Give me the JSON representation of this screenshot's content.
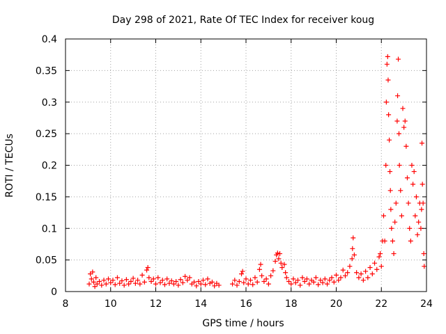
{
  "chart_data": {
    "type": "scatter",
    "title": "Day 298 of 2021, Rate Of TEC Index for receiver koug",
    "xlabel": "GPS time / hours",
    "ylabel": "ROTI / TECUs",
    "xlim": [
      8,
      24
    ],
    "ylim": [
      0,
      0.4
    ],
    "xticks": [
      8,
      10,
      12,
      14,
      16,
      18,
      20,
      22,
      24
    ],
    "xtick_labels": [
      "8",
      "10",
      "12",
      "14",
      "16",
      "18",
      "20",
      "22",
      "24"
    ],
    "yticks": [
      0,
      0.05,
      0.1,
      0.15,
      0.2,
      0.25,
      0.3,
      0.35,
      0.4
    ],
    "ytick_labels": [
      "0",
      "0.05",
      "0.1",
      "0.15",
      "0.2",
      "0.25",
      "0.3",
      "0.35",
      "0.4"
    ],
    "grid": true,
    "marker": "plus",
    "series_color": "#ff0000",
    "series": [
      {
        "points": [
          [
            9.05,
            0.012
          ],
          [
            9.1,
            0.028
          ],
          [
            9.15,
            0.02
          ],
          [
            9.2,
            0.031
          ],
          [
            9.25,
            0.015
          ],
          [
            9.3,
            0.008
          ],
          [
            9.35,
            0.022
          ],
          [
            9.4,
            0.012
          ],
          [
            9.5,
            0.016
          ],
          [
            9.6,
            0.01
          ],
          [
            9.7,
            0.018
          ],
          [
            9.8,
            0.012
          ],
          [
            9.9,
            0.02
          ],
          [
            10.0,
            0.014
          ],
          [
            10.1,
            0.018
          ],
          [
            10.2,
            0.011
          ],
          [
            10.3,
            0.022
          ],
          [
            10.4,
            0.013
          ],
          [
            10.5,
            0.017
          ],
          [
            10.6,
            0.01
          ],
          [
            10.7,
            0.019
          ],
          [
            10.8,
            0.012
          ],
          [
            10.9,
            0.016
          ],
          [
            11.0,
            0.021
          ],
          [
            11.1,
            0.013
          ],
          [
            11.2,
            0.018
          ],
          [
            11.3,
            0.012
          ],
          [
            11.4,
            0.026
          ],
          [
            11.5,
            0.015
          ],
          [
            11.6,
            0.034
          ],
          [
            11.65,
            0.038
          ],
          [
            11.7,
            0.022
          ],
          [
            11.8,
            0.016
          ],
          [
            11.9,
            0.02
          ],
          [
            12.0,
            0.012
          ],
          [
            12.1,
            0.022
          ],
          [
            12.2,
            0.014
          ],
          [
            12.3,
            0.018
          ],
          [
            12.4,
            0.011
          ],
          [
            12.5,
            0.02
          ],
          [
            12.6,
            0.013
          ],
          [
            12.7,
            0.017
          ],
          [
            12.8,
            0.012
          ],
          [
            12.9,
            0.016
          ],
          [
            13.0,
            0.01
          ],
          [
            13.1,
            0.019
          ],
          [
            13.2,
            0.014
          ],
          [
            13.3,
            0.024
          ],
          [
            13.4,
            0.018
          ],
          [
            13.5,
            0.022
          ],
          [
            13.6,
            0.012
          ],
          [
            13.7,
            0.015
          ],
          [
            13.8,
            0.009
          ],
          [
            13.9,
            0.016
          ],
          [
            14.0,
            0.012
          ],
          [
            14.1,
            0.018
          ],
          [
            14.2,
            0.011
          ],
          [
            14.3,
            0.02
          ],
          [
            14.4,
            0.013
          ],
          [
            14.5,
            0.015
          ],
          [
            14.6,
            0.009
          ],
          [
            14.7,
            0.013
          ],
          [
            14.8,
            0.01
          ],
          [
            15.4,
            0.012
          ],
          [
            15.5,
            0.018
          ],
          [
            15.6,
            0.01
          ],
          [
            15.7,
            0.016
          ],
          [
            15.8,
            0.028
          ],
          [
            15.85,
            0.032
          ],
          [
            15.9,
            0.014
          ],
          [
            16.0,
            0.02
          ],
          [
            16.1,
            0.012
          ],
          [
            16.2,
            0.018
          ],
          [
            16.3,
            0.011
          ],
          [
            16.4,
            0.022
          ],
          [
            16.5,
            0.015
          ],
          [
            16.6,
            0.035
          ],
          [
            16.65,
            0.043
          ],
          [
            16.7,
            0.025
          ],
          [
            16.8,
            0.016
          ],
          [
            16.9,
            0.02
          ],
          [
            17.0,
            0.012
          ],
          [
            17.1,
            0.025
          ],
          [
            17.2,
            0.033
          ],
          [
            17.3,
            0.048
          ],
          [
            17.35,
            0.058
          ],
          [
            17.4,
            0.061
          ],
          [
            17.45,
            0.052
          ],
          [
            17.5,
            0.06
          ],
          [
            17.55,
            0.045
          ],
          [
            17.6,
            0.038
          ],
          [
            17.7,
            0.043
          ],
          [
            17.75,
            0.03
          ],
          [
            17.8,
            0.022
          ],
          [
            17.9,
            0.016
          ],
          [
            18.0,
            0.012
          ],
          [
            18.1,
            0.02
          ],
          [
            18.2,
            0.014
          ],
          [
            18.3,
            0.018
          ],
          [
            18.4,
            0.01
          ],
          [
            18.5,
            0.022
          ],
          [
            18.6,
            0.016
          ],
          [
            18.7,
            0.02
          ],
          [
            18.8,
            0.012
          ],
          [
            18.9,
            0.018
          ],
          [
            19.0,
            0.015
          ],
          [
            19.1,
            0.022
          ],
          [
            19.2,
            0.011
          ],
          [
            19.3,
            0.018
          ],
          [
            19.4,
            0.014
          ],
          [
            19.5,
            0.02
          ],
          [
            19.6,
            0.012
          ],
          [
            19.7,
            0.018
          ],
          [
            19.8,
            0.022
          ],
          [
            19.9,
            0.015
          ],
          [
            20.0,
            0.026
          ],
          [
            20.1,
            0.018
          ],
          [
            20.2,
            0.022
          ],
          [
            20.3,
            0.034
          ],
          [
            20.4,
            0.025
          ],
          [
            20.5,
            0.03
          ],
          [
            20.6,
            0.04
          ],
          [
            20.7,
            0.052
          ],
          [
            20.72,
            0.068
          ],
          [
            20.75,
            0.085
          ],
          [
            20.8,
            0.058
          ],
          [
            20.9,
            0.03
          ],
          [
            21.0,
            0.022
          ],
          [
            21.1,
            0.028
          ],
          [
            21.2,
            0.018
          ],
          [
            21.3,
            0.032
          ],
          [
            21.4,
            0.022
          ],
          [
            21.5,
            0.038
          ],
          [
            21.6,
            0.028
          ],
          [
            21.7,
            0.045
          ],
          [
            21.8,
            0.035
          ],
          [
            21.9,
            0.055
          ],
          [
            21.95,
            0.06
          ],
          [
            22.0,
            0.04
          ],
          [
            22.05,
            0.08
          ],
          [
            22.1,
            0.12
          ],
          [
            22.15,
            0.08
          ],
          [
            22.2,
            0.2
          ],
          [
            22.22,
            0.3
          ],
          [
            22.25,
            0.36
          ],
          [
            22.28,
            0.372
          ],
          [
            22.3,
            0.335
          ],
          [
            22.32,
            0.28
          ],
          [
            22.35,
            0.24
          ],
          [
            22.38,
            0.19
          ],
          [
            22.4,
            0.16
          ],
          [
            22.42,
            0.13
          ],
          [
            22.45,
            0.1
          ],
          [
            22.5,
            0.08
          ],
          [
            22.55,
            0.06
          ],
          [
            22.6,
            0.11
          ],
          [
            22.65,
            0.14
          ],
          [
            22.7,
            0.27
          ],
          [
            22.72,
            0.31
          ],
          [
            22.75,
            0.368
          ],
          [
            22.78,
            0.25
          ],
          [
            22.8,
            0.2
          ],
          [
            22.85,
            0.16
          ],
          [
            22.9,
            0.12
          ],
          [
            22.95,
            0.29
          ],
          [
            23.0,
            0.26
          ],
          [
            23.05,
            0.27
          ],
          [
            23.1,
            0.23
          ],
          [
            23.15,
            0.18
          ],
          [
            23.2,
            0.14
          ],
          [
            23.25,
            0.1
          ],
          [
            23.3,
            0.08
          ],
          [
            23.35,
            0.2
          ],
          [
            23.4,
            0.17
          ],
          [
            23.45,
            0.19
          ],
          [
            23.5,
            0.12
          ],
          [
            23.55,
            0.15
          ],
          [
            23.6,
            0.09
          ],
          [
            23.65,
            0.11
          ],
          [
            23.7,
            0.14
          ],
          [
            23.75,
            0.1
          ],
          [
            23.78,
            0.13
          ],
          [
            23.8,
            0.235
          ],
          [
            23.82,
            0.17
          ],
          [
            23.85,
            0.14
          ],
          [
            23.88,
            0.06
          ],
          [
            23.9,
            0.04
          ]
        ]
      }
    ]
  }
}
